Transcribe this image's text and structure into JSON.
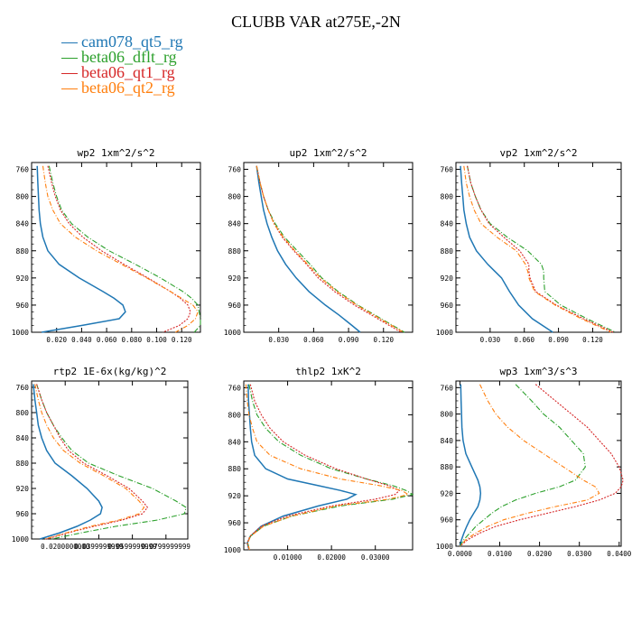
{
  "title": "CLUBB VAR at275E,-2N",
  "legend": [
    {
      "name": "cam078_qt5_rg",
      "color": "#1f77b4"
    },
    {
      "name": "beta06_dflt_rg",
      "color": "#2ca02c"
    },
    {
      "name": "beta06_qt1_rg",
      "color": "#d62728"
    },
    {
      "name": "beta06_qt2_rg",
      "color": "#ff7f0e"
    }
  ],
  "chart_data": [
    {
      "type": "line",
      "title": "wp2  1xm^2/s^2",
      "xlim": [
        0,
        0.135
      ],
      "ylim": [
        750,
        1000
      ],
      "ylabel_reversed": true,
      "yticks": [
        760,
        800,
        840,
        880,
        920,
        960,
        1000
      ],
      "xticks": [
        0.02,
        0.04,
        0.06,
        0.08,
        0.1,
        0.12
      ],
      "xtick_labels": [
        "0.020",
        "0.040",
        "0.060",
        "0.080",
        "0.100",
        "0.120"
      ],
      "y": [
        755,
        780,
        800,
        820,
        840,
        860,
        880,
        900,
        920,
        940,
        950,
        960,
        970,
        980,
        990,
        1000
      ],
      "series": [
        {
          "name": "cam078_qt5_rg",
          "values": [
            0.0045,
            0.005,
            0.0055,
            0.006,
            0.007,
            0.009,
            0.013,
            0.022,
            0.038,
            0.057,
            0.066,
            0.073,
            0.075,
            0.07,
            0.04,
            0.008
          ]
        },
        {
          "name": "beta06_dflt_rg",
          "values": [
            0.014,
            0.017,
            0.02,
            0.024,
            0.032,
            0.045,
            0.062,
            0.083,
            0.103,
            0.121,
            0.128,
            0.133,
            0.134,
            0.135,
            0.135,
            0.13
          ]
        },
        {
          "name": "beta06_qt1_rg",
          "values": [
            0.013,
            0.016,
            0.019,
            0.023,
            0.03,
            0.041,
            0.056,
            0.074,
            0.093,
            0.111,
            0.119,
            0.125,
            0.127,
            0.125,
            0.118,
            0.105
          ]
        },
        {
          "name": "beta06_qt2_rg",
          "values": [
            0.009,
            0.011,
            0.013,
            0.017,
            0.023,
            0.035,
            0.052,
            0.072,
            0.092,
            0.111,
            0.12,
            0.129,
            0.133,
            0.131,
            0.125,
            0.115
          ]
        }
      ]
    },
    {
      "type": "line",
      "title": "up2  1xm^2/s^2",
      "xlim": [
        0,
        0.145
      ],
      "ylim": [
        750,
        1000
      ],
      "yticks": [
        760,
        800,
        840,
        880,
        920,
        960,
        1000
      ],
      "xticks": [
        0.03,
        0.06,
        0.09,
        0.12
      ],
      "xtick_labels": [
        "0.030",
        "0.060",
        "0.090",
        "0.120"
      ],
      "y": [
        755,
        780,
        800,
        820,
        840,
        860,
        880,
        900,
        920,
        940,
        960,
        975,
        990,
        1000
      ],
      "series": [
        {
          "name": "cam078_qt5_rg",
          "values": [
            0.011,
            0.013,
            0.015,
            0.017,
            0.02,
            0.024,
            0.029,
            0.036,
            0.045,
            0.056,
            0.07,
            0.082,
            0.093,
            0.1
          ]
        },
        {
          "name": "beta06_dflt_rg",
          "values": [
            0.011,
            0.014,
            0.017,
            0.021,
            0.027,
            0.035,
            0.046,
            0.057,
            0.067,
            0.081,
            0.098,
            0.113,
            0.128,
            0.138
          ]
        },
        {
          "name": "beta06_qt1_rg",
          "values": [
            0.011,
            0.014,
            0.017,
            0.021,
            0.026,
            0.033,
            0.043,
            0.054,
            0.064,
            0.078,
            0.095,
            0.11,
            0.125,
            0.135
          ]
        },
        {
          "name": "beta06_qt2_rg",
          "values": [
            0.011,
            0.014,
            0.017,
            0.021,
            0.026,
            0.034,
            0.044,
            0.055,
            0.066,
            0.08,
            0.097,
            0.112,
            0.127,
            0.137
          ]
        }
      ]
    },
    {
      "type": "line",
      "title": "vp2  1xm^2/s^2",
      "xlim": [
        0,
        0.145
      ],
      "ylim": [
        750,
        1000
      ],
      "yticks": [
        760,
        800,
        840,
        880,
        920,
        960,
        1000
      ],
      "xticks": [
        0.03,
        0.06,
        0.09,
        0.12
      ],
      "xtick_labels": [
        "0.030",
        "0.060",
        "0.090",
        "0.120"
      ],
      "y": [
        755,
        780,
        800,
        820,
        840,
        860,
        880,
        900,
        910,
        920,
        940,
        960,
        980,
        1000
      ],
      "series": [
        {
          "name": "cam078_qt5_rg",
          "values": [
            0.004,
            0.005,
            0.006,
            0.007,
            0.009,
            0.012,
            0.018,
            0.028,
            0.034,
            0.04,
            0.047,
            0.055,
            0.067,
            0.085
          ]
        },
        {
          "name": "beta06_dflt_rg",
          "values": [
            0.01,
            0.013,
            0.017,
            0.022,
            0.03,
            0.045,
            0.063,
            0.075,
            0.077,
            0.077,
            0.078,
            0.092,
            0.115,
            0.14
          ]
        },
        {
          "name": "beta06_qt1_rg",
          "values": [
            0.01,
            0.013,
            0.017,
            0.022,
            0.029,
            0.042,
            0.056,
            0.064,
            0.064,
            0.065,
            0.07,
            0.088,
            0.112,
            0.138
          ]
        },
        {
          "name": "beta06_qt2_rg",
          "values": [
            0.007,
            0.009,
            0.012,
            0.016,
            0.022,
            0.036,
            0.053,
            0.061,
            0.063,
            0.064,
            0.069,
            0.087,
            0.11,
            0.136
          ]
        }
      ]
    },
    {
      "type": "line",
      "title": "rtp2  1E-6x(kg/kg)^2",
      "xlim": [
        0,
        0.093
      ],
      "ylim": [
        750,
        1000
      ],
      "yticks": [
        760,
        800,
        840,
        880,
        920,
        960,
        1000
      ],
      "xticks": [
        0.02,
        0.04,
        0.06,
        0.08
      ],
      "xtick_labels": [
        "0.0200000000",
        "0.0399999999",
        "0.0599999999",
        "0.0799999999"
      ],
      "y": [
        755,
        780,
        800,
        820,
        840,
        860,
        880,
        900,
        920,
        940,
        950,
        960,
        970,
        980,
        990,
        1000
      ],
      "series": [
        {
          "name": "cam078_qt5_rg",
          "values": [
            0.001,
            0.002,
            0.003,
            0.004,
            0.006,
            0.009,
            0.014,
            0.024,
            0.033,
            0.04,
            0.042,
            0.041,
            0.035,
            0.027,
            0.017,
            0.005
          ]
        },
        {
          "name": "beta06_dflt_rg",
          "values": [
            0.003,
            0.006,
            0.009,
            0.013,
            0.018,
            0.024,
            0.034,
            0.052,
            0.072,
            0.086,
            0.092,
            0.091,
            0.075,
            0.05,
            0.03,
            0.012
          ]
        },
        {
          "name": "beta06_qt1_rg",
          "values": [
            0.003,
            0.006,
            0.009,
            0.013,
            0.017,
            0.022,
            0.031,
            0.045,
            0.058,
            0.066,
            0.069,
            0.066,
            0.054,
            0.037,
            0.022,
            0.009
          ]
        },
        {
          "name": "beta06_qt2_rg",
          "values": [
            0.002,
            0.004,
            0.006,
            0.009,
            0.013,
            0.019,
            0.029,
            0.043,
            0.056,
            0.064,
            0.067,
            0.064,
            0.052,
            0.035,
            0.021,
            0.008
          ]
        }
      ]
    },
    {
      "type": "line",
      "title": "thlp2  1xK^2",
      "xlim": [
        0,
        0.0385
      ],
      "ylim": [
        750,
        1000
      ],
      "yticks": [
        760,
        800,
        840,
        880,
        920,
        960,
        1000
      ],
      "xticks": [
        0.01,
        0.02,
        0.03
      ],
      "xtick_labels": [
        "0.01000",
        "0.02000",
        "0.03000"
      ],
      "y": [
        755,
        780,
        800,
        820,
        840,
        860,
        880,
        895,
        905,
        912,
        918,
        925,
        935,
        950,
        965,
        980,
        990,
        1000
      ],
      "series": [
        {
          "name": "cam078_qt5_rg",
          "values": [
            0.001,
            0.0011,
            0.0013,
            0.0015,
            0.0018,
            0.0025,
            0.005,
            0.01,
            0.017,
            0.022,
            0.0255,
            0.0235,
            0.017,
            0.009,
            0.004,
            0.0015,
            0.0008,
            0.0012
          ]
        },
        {
          "name": "beta06_dflt_rg",
          "values": [
            0.0012,
            0.002,
            0.003,
            0.005,
            0.008,
            0.013,
            0.02,
            0.028,
            0.034,
            0.037,
            0.0385,
            0.034,
            0.022,
            0.011,
            0.0045,
            0.0015,
            0.0009,
            0.0013
          ]
        },
        {
          "name": "beta06_qt1_rg",
          "values": [
            0.0015,
            0.0025,
            0.004,
            0.006,
            0.009,
            0.014,
            0.021,
            0.028,
            0.033,
            0.0355,
            0.0345,
            0.03,
            0.02,
            0.01,
            0.004,
            0.0014,
            0.0008,
            0.0012
          ]
        },
        {
          "name": "beta06_qt2_rg",
          "values": [
            0.0005,
            0.0008,
            0.0012,
            0.002,
            0.003,
            0.006,
            0.013,
            0.022,
            0.031,
            0.036,
            0.0375,
            0.033,
            0.021,
            0.011,
            0.0045,
            0.0015,
            0.0009,
            0.0013
          ]
        }
      ]
    },
    {
      "type": "line",
      "title": "wp3  1xm^3/s^3",
      "xlim": [
        -0.001,
        0.0405
      ],
      "ylim": [
        750,
        1000
      ],
      "yticks": [
        760,
        800,
        840,
        880,
        920,
        960,
        1000
      ],
      "xticks": [
        0.0,
        0.01,
        0.02,
        0.03,
        0.04
      ],
      "xtick_labels": [
        "0.0000",
        "0.0100",
        "0.0200",
        "0.0300",
        "0.0400"
      ],
      "y": [
        755,
        780,
        800,
        820,
        840,
        860,
        880,
        900,
        910,
        920,
        930,
        940,
        950,
        960,
        970,
        980,
        990,
        1000
      ],
      "series": [
        {
          "name": "cam078_qt5_rg",
          "values": [
            0.0002,
            0.0003,
            0.0004,
            0.0005,
            0.0008,
            0.0015,
            0.003,
            0.0045,
            0.005,
            0.0052,
            0.005,
            0.0045,
            0.0035,
            0.0025,
            0.0017,
            0.001,
            0.0004,
            0.0
          ]
        },
        {
          "name": "beta06_dflt_rg",
          "values": [
            0.014,
            0.018,
            0.021,
            0.025,
            0.028,
            0.031,
            0.0315,
            0.029,
            0.025,
            0.019,
            0.014,
            0.0105,
            0.008,
            0.006,
            0.004,
            0.0025,
            0.001,
            0.0
          ]
        },
        {
          "name": "beta06_qt1_rg",
          "values": [
            0.019,
            0.024,
            0.028,
            0.032,
            0.035,
            0.038,
            0.04,
            0.041,
            0.0405,
            0.039,
            0.035,
            0.029,
            0.022,
            0.015,
            0.009,
            0.005,
            0.002,
            0.0
          ]
        },
        {
          "name": "beta06_qt2_rg",
          "values": [
            0.005,
            0.007,
            0.009,
            0.012,
            0.016,
            0.021,
            0.026,
            0.031,
            0.034,
            0.035,
            0.032,
            0.024,
            0.017,
            0.011,
            0.007,
            0.004,
            0.0015,
            0.0
          ]
        }
      ]
    }
  ]
}
